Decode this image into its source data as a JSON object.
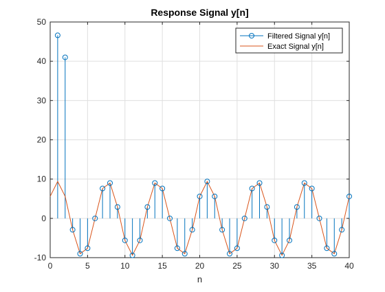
{
  "chart_data": {
    "type": "stem+line",
    "title": "Response Signal y[n]",
    "xlabel": "n",
    "ylabel": "",
    "xlim": [
      0,
      40
    ],
    "ylim": [
      -10,
      50
    ],
    "xticks": [
      0,
      5,
      10,
      15,
      20,
      25,
      30,
      35,
      40
    ],
    "yticks": [
      -10,
      0,
      10,
      20,
      30,
      40,
      50
    ],
    "grid": true,
    "legend_position": "top-right",
    "series": [
      {
        "name": "Filtered Signal y[n]",
        "style": "stem",
        "color": "#0072bd",
        "x": [
          1,
          2,
          3,
          4,
          5,
          6,
          7,
          8,
          9,
          10,
          11,
          12,
          13,
          14,
          15,
          16,
          17,
          18,
          19,
          20,
          21,
          22,
          23,
          24,
          25,
          26,
          27,
          28,
          29,
          30,
          31,
          32,
          33,
          34,
          35,
          36,
          37,
          38,
          39,
          40
        ],
        "y": [
          46.6,
          41.0,
          -2.9,
          -9.0,
          -7.6,
          0.0,
          7.6,
          9.0,
          2.9,
          -5.6,
          -9.4,
          -5.6,
          2.9,
          9.0,
          7.6,
          0.0,
          -7.6,
          -9.0,
          -2.9,
          5.6,
          9.4,
          5.6,
          -2.9,
          -9.0,
          -7.6,
          0.0,
          7.6,
          9.0,
          2.9,
          -5.6,
          -9.4,
          -5.6,
          2.9,
          9.0,
          7.6,
          0.0,
          -7.6,
          -9.0,
          -2.9,
          5.6
        ]
      },
      {
        "name": "Exact Signal y[n]",
        "style": "line",
        "color": "#d95319",
        "x": [
          0,
          1,
          2,
          3,
          4,
          5,
          6,
          7,
          8,
          9,
          10,
          11,
          12,
          13,
          14,
          15,
          16,
          17,
          18,
          19,
          20,
          21,
          22,
          23,
          24,
          25,
          26,
          27,
          28,
          29,
          30,
          31,
          32,
          33,
          34,
          35,
          36,
          37,
          38,
          39,
          40
        ],
        "y": [
          5.6,
          9.4,
          5.6,
          -2.9,
          -9.0,
          -7.6,
          0.0,
          7.6,
          9.0,
          2.9,
          -5.6,
          -9.4,
          -5.6,
          2.9,
          9.0,
          7.6,
          0.0,
          -7.6,
          -9.0,
          -2.9,
          5.6,
          9.4,
          5.6,
          -2.9,
          -9.0,
          -7.6,
          0.0,
          7.6,
          9.0,
          2.9,
          -5.6,
          -9.4,
          -5.6,
          2.9,
          9.0,
          7.6,
          0.0,
          -7.6,
          -9.0,
          -2.9,
          5.6
        ]
      }
    ]
  }
}
